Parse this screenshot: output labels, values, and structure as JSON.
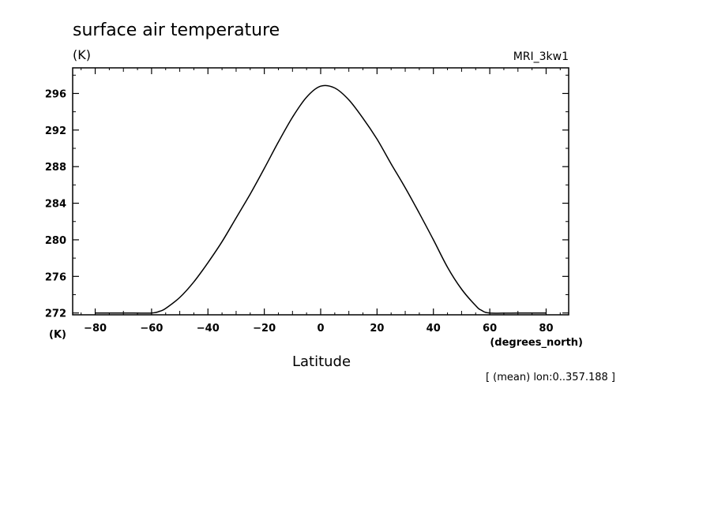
{
  "chart_data": {
    "type": "line",
    "title": "surface air temperature",
    "y_unit_top": "(K)",
    "y_unit_bottom": "(K)",
    "model_label": "MRI_3kw1",
    "xlabel": "Latitude",
    "x_unit": "(degrees_north)",
    "footnote": "[ (mean) lon:0..357.188 ]",
    "xlim": [
      -88,
      88
    ],
    "ylim": [
      271.8,
      298.8
    ],
    "x_ticks": [
      -80,
      -60,
      -40,
      -20,
      0,
      20,
      40,
      60,
      80
    ],
    "y_ticks": [
      272,
      276,
      280,
      284,
      288,
      292,
      296
    ],
    "grid": false,
    "series": [
      {
        "x": [
          -80,
          -70,
          -60,
          -57,
          -55,
          -50,
          -45,
          -40,
          -35,
          -30,
          -25,
          -20,
          -15,
          -10,
          -5,
          0,
          5,
          10,
          15,
          20,
          25,
          30,
          35,
          40,
          45,
          50,
          55,
          57,
          60,
          70,
          80
        ],
        "y": [
          272.0,
          272.0,
          272.0,
          272.2,
          272.5,
          273.7,
          275.4,
          277.5,
          279.8,
          282.4,
          285.0,
          287.8,
          290.7,
          293.4,
          295.6,
          296.8,
          296.6,
          295.3,
          293.3,
          291.0,
          288.3,
          285.7,
          282.9,
          280.0,
          277.0,
          274.6,
          272.8,
          272.3,
          272.0,
          272.0,
          272.0
        ]
      }
    ]
  }
}
